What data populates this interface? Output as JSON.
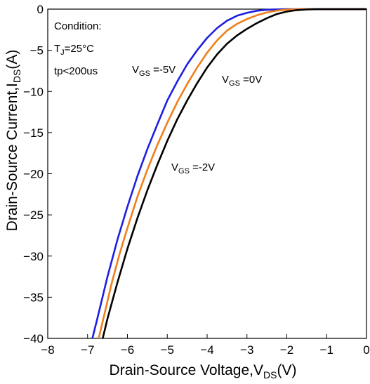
{
  "chart_data": {
    "type": "line",
    "title": "",
    "xlabel": {
      "main": "Drain-Source Voltage,V",
      "sub": "DS",
      "tail": "(V)"
    },
    "ylabel": {
      "main": "Drain-Source Current,I",
      "sub": "DS",
      "tail": "(A)"
    },
    "xlim": [
      -8,
      0
    ],
    "ylim": [
      -40,
      0
    ],
    "xticks": [
      -8,
      -7,
      -6,
      -5,
      -4,
      -3,
      -2,
      -1,
      0
    ],
    "xtick_labels": [
      "−8",
      "−7",
      "−6",
      "−5",
      "−4",
      "−3",
      "−2",
      "−1",
      "0"
    ],
    "yticks": [
      -40,
      -35,
      -30,
      -25,
      -20,
      -15,
      -10,
      -5,
      0
    ],
    "ytick_labels": [
      "−40",
      "−35",
      "−30",
      "−25",
      "−20",
      "−15",
      "−10",
      "−5",
      "0"
    ],
    "grid": false,
    "conditions": {
      "title": "Condition:",
      "line1": {
        "pre": "T",
        "sub": "J",
        "post": "=25°C"
      },
      "line2": "tp<200us"
    },
    "series": [
      {
        "label": {
          "pre": "V",
          "sub": "GS",
          "post": " =-5V"
        },
        "color": "#1f1fe0",
        "points": [
          [
            -6.88,
            -40
          ],
          [
            -6.75,
            -37.5
          ],
          [
            -6.5,
            -32.5
          ],
          [
            -6.25,
            -28
          ],
          [
            -6.0,
            -24
          ],
          [
            -5.75,
            -20.3
          ],
          [
            -5.5,
            -17
          ],
          [
            -5.25,
            -14
          ],
          [
            -5.0,
            -11.1
          ],
          [
            -4.75,
            -8.8
          ],
          [
            -4.5,
            -6.7
          ],
          [
            -4.25,
            -5
          ],
          [
            -4.0,
            -3.5
          ],
          [
            -3.75,
            -2.3
          ],
          [
            -3.5,
            -1.4
          ],
          [
            -3.25,
            -0.8
          ],
          [
            -3.0,
            -0.45
          ],
          [
            -2.75,
            -0.2
          ],
          [
            -2.5,
            -0.08
          ],
          [
            -2.25,
            -0.03
          ],
          [
            -2.0,
            -0.01
          ],
          [
            0,
            0
          ]
        ]
      },
      {
        "label": {
          "pre": "V",
          "sub": "GS",
          "post": " =-2V"
        },
        "color": "#f07f1a",
        "points": [
          [
            -6.72,
            -40
          ],
          [
            -6.6,
            -37.5
          ],
          [
            -6.4,
            -33.4
          ],
          [
            -6.2,
            -29.8
          ],
          [
            -6.0,
            -26.6
          ],
          [
            -5.75,
            -22.8
          ],
          [
            -5.5,
            -19.5
          ],
          [
            -5.25,
            -16.5
          ],
          [
            -5.0,
            -13.8
          ],
          [
            -4.75,
            -11.3
          ],
          [
            -4.5,
            -9.1
          ],
          [
            -4.25,
            -7.1
          ],
          [
            -4.0,
            -5.3
          ],
          [
            -3.75,
            -3.8
          ],
          [
            -3.5,
            -2.6
          ],
          [
            -3.25,
            -1.8
          ],
          [
            -3.0,
            -1.2
          ],
          [
            -2.75,
            -0.75
          ],
          [
            -2.5,
            -0.4
          ],
          [
            -2.25,
            -0.18
          ],
          [
            -2.0,
            -0.07
          ],
          [
            -1.75,
            -0.02
          ],
          [
            -1.5,
            0
          ],
          [
            0,
            0
          ]
        ]
      },
      {
        "label": {
          "pre": "V",
          "sub": "GS",
          "post": " =0V"
        },
        "color": "#000000",
        "points": [
          [
            -6.62,
            -40
          ],
          [
            -6.5,
            -37.6
          ],
          [
            -6.25,
            -33.2
          ],
          [
            -6.0,
            -29.1
          ],
          [
            -5.75,
            -25.4
          ],
          [
            -5.5,
            -22
          ],
          [
            -5.25,
            -18.9
          ],
          [
            -5.0,
            -16
          ],
          [
            -4.75,
            -13.4
          ],
          [
            -4.5,
            -11.1
          ],
          [
            -4.25,
            -9
          ],
          [
            -4.0,
            -7.1
          ],
          [
            -3.75,
            -5.5
          ],
          [
            -3.5,
            -4.2
          ],
          [
            -3.25,
            -3.2
          ],
          [
            -3.0,
            -2.4
          ],
          [
            -2.75,
            -1.7
          ],
          [
            -2.5,
            -1.1
          ],
          [
            -2.25,
            -0.6
          ],
          [
            -2.0,
            -0.3
          ],
          [
            -1.75,
            -0.12
          ],
          [
            -1.5,
            -0.04
          ],
          [
            -1.25,
            -0.01
          ],
          [
            0,
            0
          ]
        ]
      }
    ]
  }
}
